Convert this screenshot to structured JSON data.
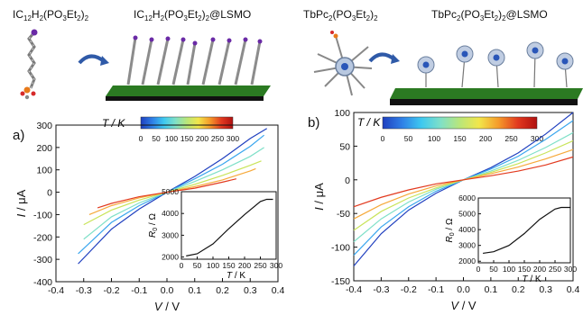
{
  "molecules": {
    "a_left": {
      "main": "IC",
      "s1": "12",
      "m2": "H",
      "s2": "2",
      "m3": "(PO",
      "s3": "3",
      "m4": "Et",
      "s4": "2",
      "m5": ")",
      "s5": "2"
    },
    "a_right": {
      "main": "IC",
      "s1": "12",
      "m2": "H",
      "s2": "2",
      "m3": "(PO",
      "s3": "3",
      "m4": "Et",
      "s4": "2",
      "m5": ")",
      "s5": "2",
      "tail": "@LSMO"
    },
    "b_left": {
      "main": "TbPc",
      "s1": "2",
      "m3": "(PO",
      "s3": "3",
      "m4": "Et",
      "s4": "2",
      "m5": ")",
      "s5": "2"
    },
    "b_right": {
      "main": "TbPc",
      "s1": "2",
      "m3": "(PO",
      "s3": "3",
      "m4": "Et",
      "s4": "2",
      "m5": ")",
      "s5": "2",
      "tail": "@LSMO"
    }
  },
  "colorbar": {
    "title": "T / K",
    "ticks": [
      "0",
      "50",
      "100",
      "150",
      "200",
      "250",
      "300"
    ],
    "colors": [
      "#1f3fbf",
      "#2f7fe6",
      "#3ec8f0",
      "#7fe0c8",
      "#b9e67a",
      "#f2e64a",
      "#f59b2a",
      "#e23a1f",
      "#b01010"
    ]
  },
  "chart_data": [
    {
      "panel": "a)",
      "type": "line",
      "xlabel_main": "V",
      "xlabel_unit": "V",
      "ylabel_main": "I",
      "ylabel_unit": "μA",
      "xlim": [
        -0.4,
        0.4
      ],
      "ylim": [
        -400,
        300
      ],
      "xticks": [
        "-0.4",
        "-0.3",
        "-0.2",
        "-0.1",
        "0.0",
        "0.1",
        "0.2",
        "0.3",
        "0.4"
      ],
      "yticks": [
        "-400",
        "-300",
        "-200",
        "-100",
        "0",
        "100",
        "200",
        "300"
      ],
      "series": [
        {
          "color": "#1f3fbf",
          "x": [
            -0.32,
            -0.2,
            -0.1,
            0.0,
            0.1,
            0.2,
            0.3,
            0.36
          ],
          "y": [
            -320,
            -165,
            -75,
            0,
            70,
            150,
            240,
            285
          ]
        },
        {
          "color": "#3aa6ee",
          "x": [
            -0.32,
            -0.2,
            -0.1,
            0.0,
            0.1,
            0.2,
            0.3,
            0.35
          ],
          "y": [
            -275,
            -135,
            -60,
            0,
            60,
            125,
            205,
            255
          ]
        },
        {
          "color": "#7fe0c8",
          "x": [
            -0.3,
            -0.2,
            -0.1,
            0.0,
            0.1,
            0.2,
            0.3,
            0.35
          ],
          "y": [
            -210,
            -110,
            -48,
            0,
            48,
            100,
            160,
            200
          ]
        },
        {
          "color": "#c9e45a",
          "x": [
            -0.3,
            -0.2,
            -0.1,
            0.0,
            0.1,
            0.2,
            0.3,
            0.34
          ],
          "y": [
            -145,
            -80,
            -35,
            0,
            35,
            75,
            120,
            140
          ]
        },
        {
          "color": "#f6a93a",
          "x": [
            -0.28,
            -0.2,
            -0.1,
            0.0,
            0.1,
            0.2,
            0.3,
            0.32
          ],
          "y": [
            -100,
            -60,
            -25,
            0,
            25,
            55,
            95,
            105
          ]
        },
        {
          "color": "#e23a1f",
          "x": [
            -0.25,
            -0.2,
            -0.1,
            0.0,
            0.1,
            0.2,
            0.25
          ],
          "y": [
            -70,
            -50,
            -20,
            0,
            18,
            45,
            60
          ]
        }
      ],
      "inset": {
        "type": "line",
        "xlabel_main": "T",
        "xlabel_unit": "K",
        "ylabel_main": "R",
        "ylabel_sub": "0",
        "ylabel_unit": "Ω",
        "xlim": [
          0,
          300
        ],
        "ylim": [
          1900,
          5000
        ],
        "xticks": [
          "0",
          "50",
          "100",
          "150",
          "200",
          "250",
          "300"
        ],
        "yticks": [
          "2000",
          "3000",
          "4000",
          "5000"
        ],
        "x": [
          15,
          50,
          100,
          150,
          200,
          250,
          270,
          290
        ],
        "y": [
          2050,
          2150,
          2600,
          3300,
          3950,
          4550,
          4650,
          4650
        ]
      }
    },
    {
      "panel": "b)",
      "type": "line",
      "xlabel_main": "V",
      "xlabel_unit": "V",
      "ylabel_main": "I",
      "ylabel_unit": "μA",
      "xlim": [
        -0.4,
        0.4
      ],
      "ylim": [
        -150,
        100
      ],
      "xticks": [
        "-0.4",
        "-0.3",
        "-0.2",
        "-0.1",
        "0.0",
        "0.1",
        "0.2",
        "0.3",
        "0.4"
      ],
      "yticks": [
        "-150",
        "-100",
        "-50",
        "0",
        "50",
        "100"
      ],
      "series": [
        {
          "color": "#1f3fbf",
          "x": [
            -0.4,
            -0.3,
            -0.2,
            -0.1,
            0.0,
            0.1,
            0.2,
            0.3,
            0.4
          ],
          "y": [
            -128,
            -80,
            -45,
            -20,
            0,
            18,
            40,
            68,
            100
          ]
        },
        {
          "color": "#3aa6ee",
          "x": [
            -0.4,
            -0.3,
            -0.2,
            -0.1,
            0.0,
            0.1,
            0.2,
            0.3,
            0.4
          ],
          "y": [
            -112,
            -70,
            -40,
            -17,
            0,
            16,
            35,
            60,
            88
          ]
        },
        {
          "color": "#7fe0c8",
          "x": [
            -0.4,
            -0.3,
            -0.2,
            -0.1,
            0.0,
            0.1,
            0.2,
            0.3,
            0.4
          ],
          "y": [
            -92,
            -58,
            -33,
            -14,
            0,
            13,
            29,
            48,
            70
          ]
        },
        {
          "color": "#c9e45a",
          "x": [
            -0.4,
            -0.3,
            -0.2,
            -0.1,
            0.0,
            0.1,
            0.2,
            0.3,
            0.4
          ],
          "y": [
            -75,
            -47,
            -27,
            -12,
            0,
            11,
            24,
            40,
            58
          ]
        },
        {
          "color": "#f6a93a",
          "x": [
            -0.4,
            -0.3,
            -0.2,
            -0.1,
            0.0,
            0.1,
            0.2,
            0.3,
            0.4
          ],
          "y": [
            -58,
            -37,
            -21,
            -9,
            0,
            9,
            19,
            31,
            45
          ]
        },
        {
          "color": "#e23a1f",
          "x": [
            -0.4,
            -0.3,
            -0.2,
            -0.1,
            0.0,
            0.1,
            0.2,
            0.3,
            0.4
          ],
          "y": [
            -40,
            -26,
            -15,
            -6,
            0,
            6,
            13,
            22,
            34
          ]
        }
      ],
      "inset": {
        "type": "line",
        "xlabel_main": "T",
        "xlabel_unit": "K",
        "ylabel_main": "R",
        "ylabel_sub": "0",
        "ylabel_unit": "Ω",
        "xlim": [
          0,
          300
        ],
        "ylim": [
          1900,
          6000
        ],
        "xticks": [
          "0",
          "50",
          "100",
          "150",
          "200",
          "250",
          "300"
        ],
        "yticks": [
          "2000",
          "3000",
          "4000",
          "5000",
          "6000"
        ],
        "x": [
          15,
          50,
          100,
          150,
          200,
          250,
          270,
          300
        ],
        "y": [
          2500,
          2600,
          3000,
          3750,
          4650,
          5300,
          5400,
          5400
        ]
      }
    }
  ]
}
